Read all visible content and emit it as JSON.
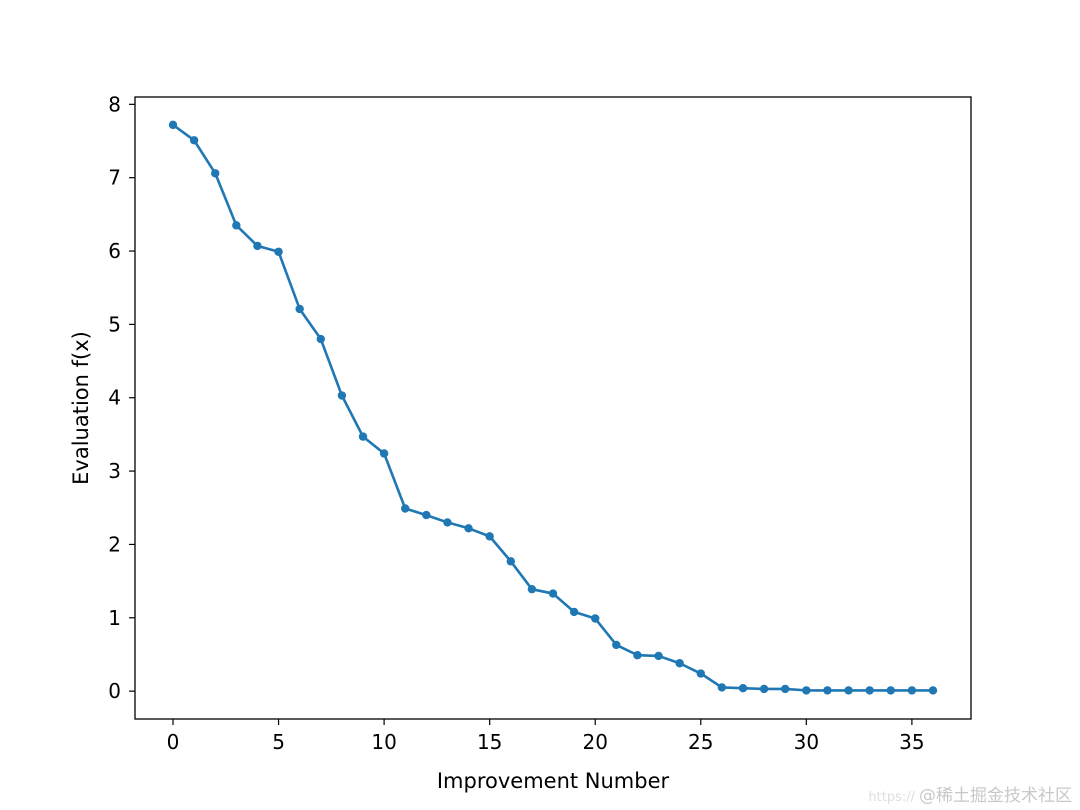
{
  "chart_data": {
    "type": "line",
    "title": "",
    "xlabel": "Improvement Number",
    "ylabel": "Evaluation f(x)",
    "xlim": [
      -1.8,
      37.8
    ],
    "ylim": [
      -0.38,
      8.1
    ],
    "xticks": [
      0,
      5,
      10,
      15,
      20,
      25,
      30,
      35
    ],
    "yticks": [
      0,
      1,
      2,
      3,
      4,
      5,
      6,
      7,
      8
    ],
    "grid": false,
    "series": [
      {
        "color": "#1f77b4",
        "marker": "circle",
        "x": [
          0,
          1,
          2,
          3,
          4,
          5,
          6,
          7,
          8,
          9,
          10,
          11,
          12,
          13,
          14,
          15,
          16,
          17,
          18,
          19,
          20,
          21,
          22,
          23,
          24,
          25,
          26,
          27,
          28,
          29,
          30,
          31,
          32,
          33,
          34,
          35,
          36
        ],
        "y": [
          7.72,
          7.51,
          7.06,
          6.35,
          6.07,
          5.99,
          5.21,
          4.8,
          4.03,
          3.47,
          3.24,
          2.49,
          2.4,
          2.3,
          2.22,
          2.11,
          1.77,
          1.39,
          1.33,
          1.08,
          0.99,
          0.63,
          0.49,
          0.48,
          0.38,
          0.24,
          0.05,
          0.04,
          0.03,
          0.03,
          0.01,
          0.01,
          0.01,
          0.01,
          0.01,
          0.01,
          0.01
        ]
      }
    ]
  },
  "watermark": {
    "url": "https://",
    "text": "@稀土掘金技术社区"
  }
}
